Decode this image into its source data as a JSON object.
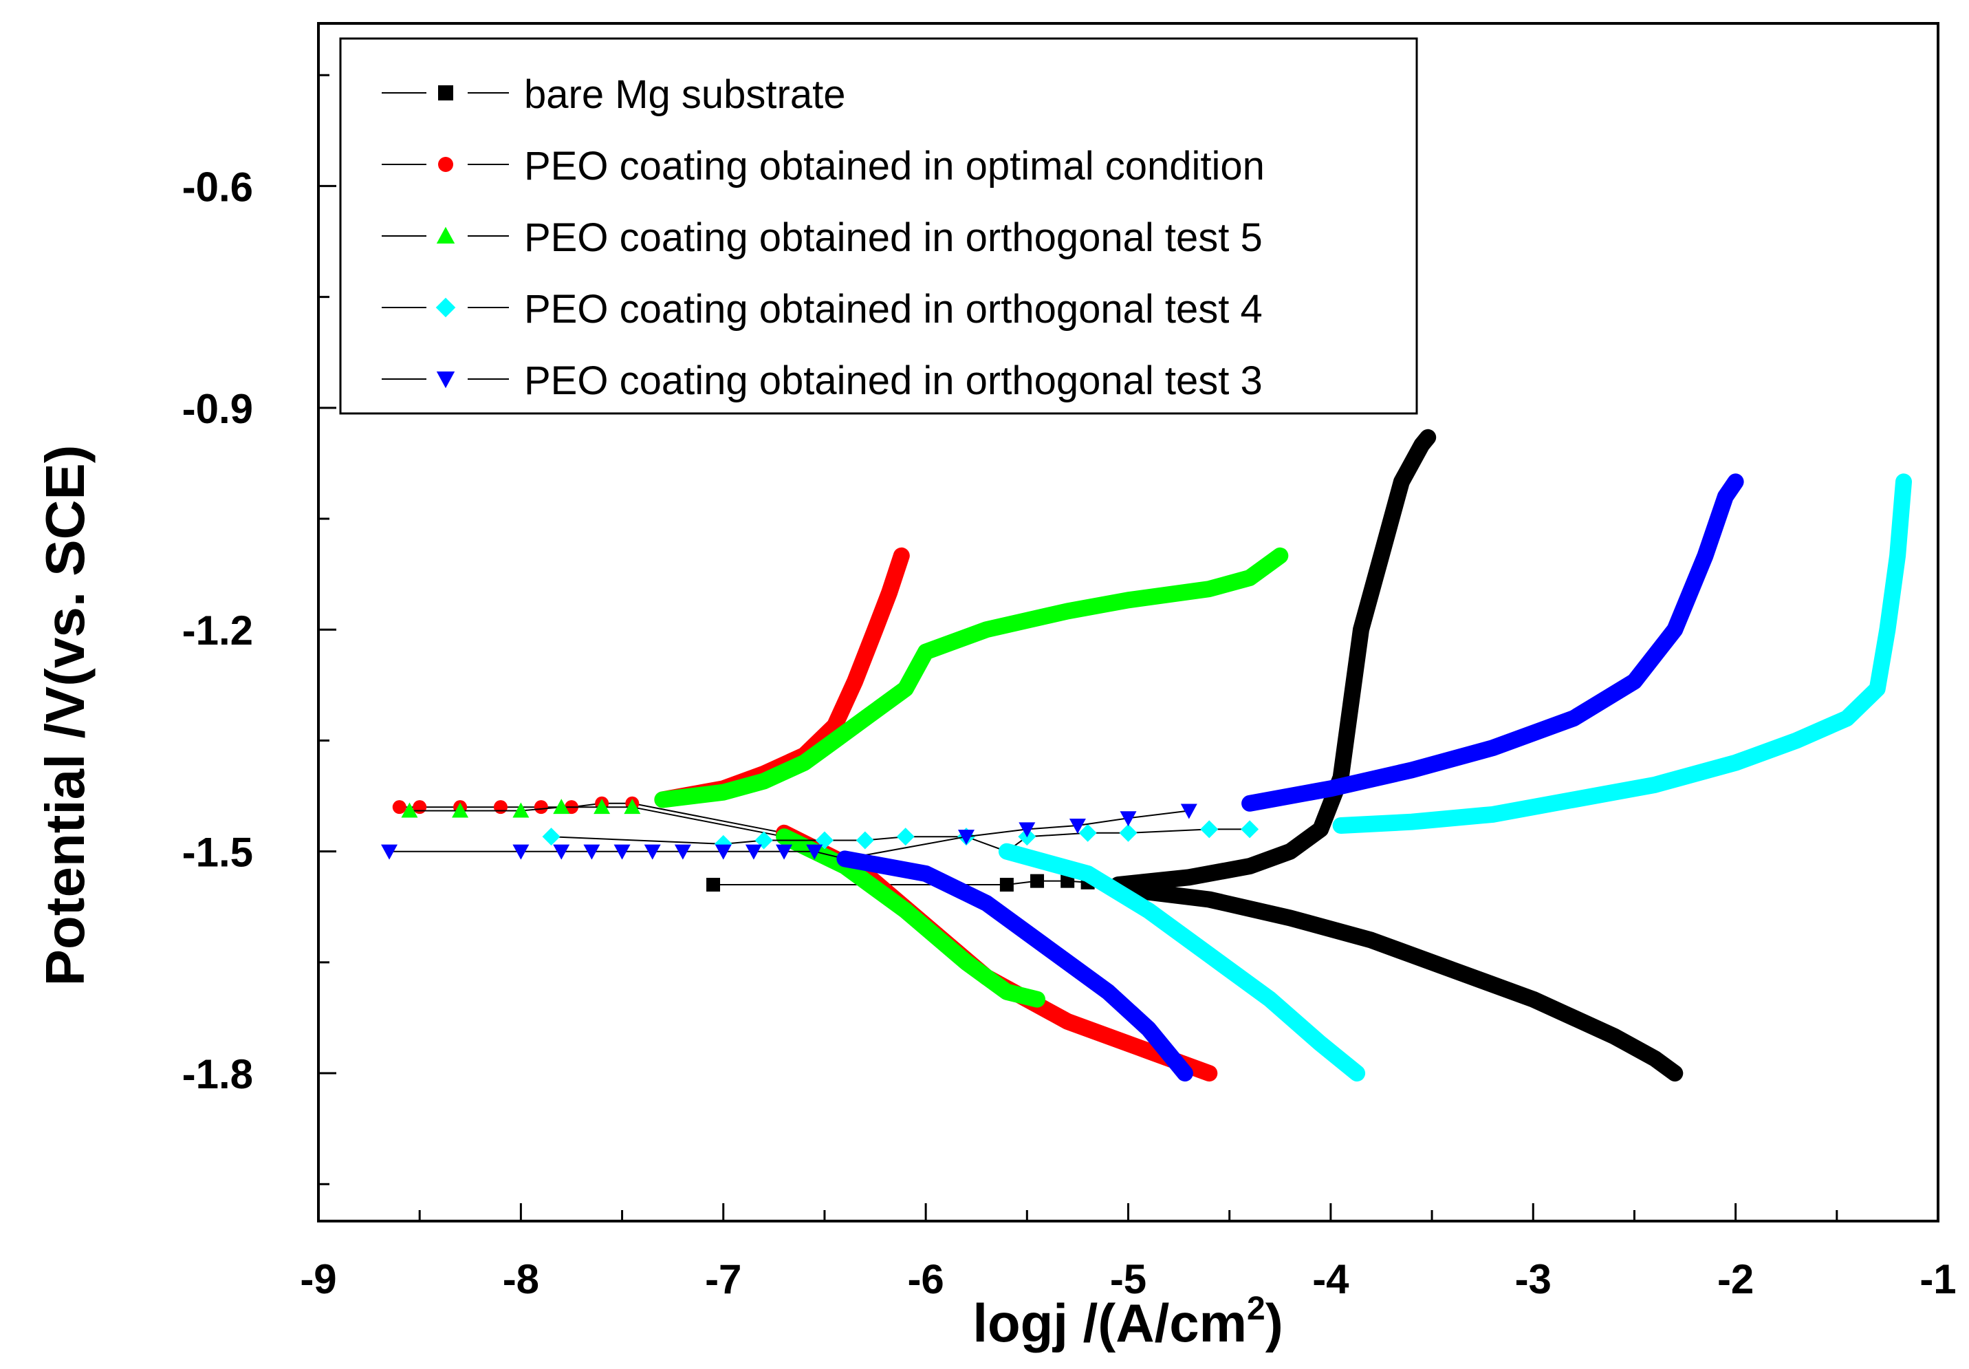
{
  "chart_data": {
    "type": "scatter",
    "title": "",
    "xlabel": "logj /(A/cm",
    "xlabel_sup": "2",
    "xlabel_close": ")",
    "ylabel": "Potential /V(vs. SCE)",
    "xlim": [
      -9,
      -1
    ],
    "ylim": [
      -2.0,
      -0.38
    ],
    "x_ticks": [
      -9,
      -8,
      -7,
      -6,
      -5,
      -4,
      -3,
      -2,
      -1
    ],
    "x_tick_labels": [
      "-9",
      "-8",
      "-7",
      "-6",
      "-5",
      "-4",
      "-3",
      "-2",
      "-1"
    ],
    "y_ticks": [
      -1.8,
      -1.5,
      -1.2,
      -0.9,
      -0.6
    ],
    "y_tick_labels": [
      "-1.8",
      "-1.5",
      "-1.2",
      "-0.9",
      "-0.6"
    ],
    "legend_position": "top-left",
    "series": [
      {
        "name": "bare Mg substrate",
        "color": "#000000",
        "marker": "square",
        "anodic": [
          [
            -5.05,
            -1.545
          ],
          [
            -4.7,
            -1.535
          ],
          [
            -4.4,
            -1.52
          ],
          [
            -4.2,
            -1.5
          ],
          [
            -4.05,
            -1.47
          ],
          [
            -3.95,
            -1.4
          ],
          [
            -3.9,
            -1.3
          ],
          [
            -3.85,
            -1.2
          ],
          [
            -3.75,
            -1.1
          ],
          [
            -3.65,
            -1.0
          ],
          [
            -3.55,
            -0.95
          ],
          [
            -3.52,
            -0.94
          ]
        ],
        "cathodic": [
          [
            -5.05,
            -1.55
          ],
          [
            -4.6,
            -1.565
          ],
          [
            -4.2,
            -1.59
          ],
          [
            -3.8,
            -1.62
          ],
          [
            -3.4,
            -1.66
          ],
          [
            -3.0,
            -1.7
          ],
          [
            -2.6,
            -1.75
          ],
          [
            -2.4,
            -1.78
          ],
          [
            -2.3,
            -1.8
          ]
        ],
        "sparse": [
          [
            -7.05,
            -1.545
          ],
          [
            -5.6,
            -1.545
          ],
          [
            -5.45,
            -1.54
          ],
          [
            -5.3,
            -1.54
          ],
          [
            -5.2,
            -1.542
          ]
        ]
      },
      {
        "name": "PEO coating obtained in optimal condition",
        "color": "#ff0000",
        "marker": "circle",
        "anodic": [
          [
            -7.3,
            -1.43
          ],
          [
            -7.0,
            -1.415
          ],
          [
            -6.8,
            -1.395
          ],
          [
            -6.6,
            -1.37
          ],
          [
            -6.45,
            -1.33
          ],
          [
            -6.35,
            -1.27
          ],
          [
            -6.25,
            -1.2
          ],
          [
            -6.18,
            -1.15
          ],
          [
            -6.12,
            -1.1
          ]
        ],
        "cathodic": [
          [
            -6.7,
            -1.475
          ],
          [
            -6.3,
            -1.53
          ],
          [
            -6.0,
            -1.6
          ],
          [
            -5.7,
            -1.67
          ],
          [
            -5.3,
            -1.73
          ],
          [
            -4.9,
            -1.77
          ],
          [
            -4.6,
            -1.8
          ]
        ],
        "sparse": [
          [
            -8.6,
            -1.44
          ],
          [
            -8.5,
            -1.44
          ],
          [
            -8.3,
            -1.44
          ],
          [
            -8.1,
            -1.44
          ],
          [
            -7.9,
            -1.44
          ],
          [
            -7.75,
            -1.44
          ],
          [
            -7.6,
            -1.435
          ],
          [
            -7.45,
            -1.435
          ]
        ]
      },
      {
        "name": "PEO coating obtained in orthogonal test 5",
        "color": "#00ff00",
        "marker": "triangle-up",
        "anodic": [
          [
            -7.3,
            -1.43
          ],
          [
            -7.0,
            -1.42
          ],
          [
            -6.8,
            -1.405
          ],
          [
            -6.6,
            -1.38
          ],
          [
            -6.45,
            -1.35
          ],
          [
            -6.3,
            -1.32
          ],
          [
            -6.1,
            -1.28
          ],
          [
            -6.0,
            -1.23
          ],
          [
            -5.7,
            -1.2
          ],
          [
            -5.3,
            -1.175
          ],
          [
            -5.0,
            -1.16
          ],
          [
            -4.6,
            -1.145
          ],
          [
            -4.4,
            -1.13
          ],
          [
            -4.25,
            -1.1
          ]
        ],
        "cathodic": [
          [
            -6.7,
            -1.48
          ],
          [
            -6.4,
            -1.52
          ],
          [
            -6.1,
            -1.58
          ],
          [
            -5.8,
            -1.65
          ],
          [
            -5.6,
            -1.69
          ],
          [
            -5.45,
            -1.7
          ]
        ],
        "sparse": [
          [
            -8.55,
            -1.445
          ],
          [
            -8.3,
            -1.445
          ],
          [
            -8.0,
            -1.445
          ],
          [
            -7.8,
            -1.44
          ],
          [
            -7.6,
            -1.44
          ],
          [
            -7.45,
            -1.44
          ]
        ]
      },
      {
        "name": "PEO coating obtained in orthogonal test 4",
        "color": "#00ffff",
        "marker": "diamond",
        "anodic": [
          [
            -3.95,
            -1.465
          ],
          [
            -3.6,
            -1.46
          ],
          [
            -3.2,
            -1.45
          ],
          [
            -2.8,
            -1.43
          ],
          [
            -2.4,
            -1.41
          ],
          [
            -2.0,
            -1.38
          ],
          [
            -1.7,
            -1.35
          ],
          [
            -1.45,
            -1.32
          ],
          [
            -1.3,
            -1.28
          ],
          [
            -1.25,
            -1.2
          ],
          [
            -1.2,
            -1.1
          ],
          [
            -1.17,
            -1.0
          ]
        ],
        "cathodic": [
          [
            -5.6,
            -1.5
          ],
          [
            -5.2,
            -1.53
          ],
          [
            -4.9,
            -1.58
          ],
          [
            -4.6,
            -1.64
          ],
          [
            -4.3,
            -1.7
          ],
          [
            -4.05,
            -1.76
          ],
          [
            -3.87,
            -1.8
          ]
        ],
        "sparse": [
          [
            -7.85,
            -1.48
          ],
          [
            -7.0,
            -1.49
          ],
          [
            -6.8,
            -1.485
          ],
          [
            -6.5,
            -1.485
          ],
          [
            -6.3,
            -1.485
          ],
          [
            -6.1,
            -1.48
          ],
          [
            -5.8,
            -1.48
          ],
          [
            -5.5,
            -1.48
          ],
          [
            -5.2,
            -1.475
          ],
          [
            -5.0,
            -1.475
          ],
          [
            -4.6,
            -1.47
          ],
          [
            -4.4,
            -1.47
          ]
        ]
      },
      {
        "name": "PEO coating obtained in orthogonal test 3",
        "color": "#0000ff",
        "marker": "triangle-down",
        "anodic": [
          [
            -4.4,
            -1.435
          ],
          [
            -4.0,
            -1.415
          ],
          [
            -3.6,
            -1.39
          ],
          [
            -3.2,
            -1.36
          ],
          [
            -2.8,
            -1.32
          ],
          [
            -2.5,
            -1.27
          ],
          [
            -2.3,
            -1.2
          ],
          [
            -2.15,
            -1.1
          ],
          [
            -2.05,
            -1.02
          ],
          [
            -2.0,
            -1.0
          ]
        ],
        "cathodic": [
          [
            -6.4,
            -1.51
          ],
          [
            -6.0,
            -1.53
          ],
          [
            -5.7,
            -1.57
          ],
          [
            -5.4,
            -1.63
          ],
          [
            -5.1,
            -1.69
          ],
          [
            -4.9,
            -1.74
          ],
          [
            -4.72,
            -1.8
          ]
        ],
        "sparse": [
          [
            -8.65,
            -1.5
          ],
          [
            -8.0,
            -1.5
          ],
          [
            -7.8,
            -1.5
          ],
          [
            -7.65,
            -1.5
          ],
          [
            -7.5,
            -1.5
          ],
          [
            -7.35,
            -1.5
          ],
          [
            -7.2,
            -1.5
          ],
          [
            -7.0,
            -1.5
          ],
          [
            -6.85,
            -1.5
          ],
          [
            -6.7,
            -1.5
          ],
          [
            -6.55,
            -1.5
          ],
          [
            -5.8,
            -1.48
          ],
          [
            -5.5,
            -1.47
          ],
          [
            -5.25,
            -1.465
          ],
          [
            -5.0,
            -1.455
          ],
          [
            -4.7,
            -1.445
          ]
        ]
      }
    ]
  }
}
